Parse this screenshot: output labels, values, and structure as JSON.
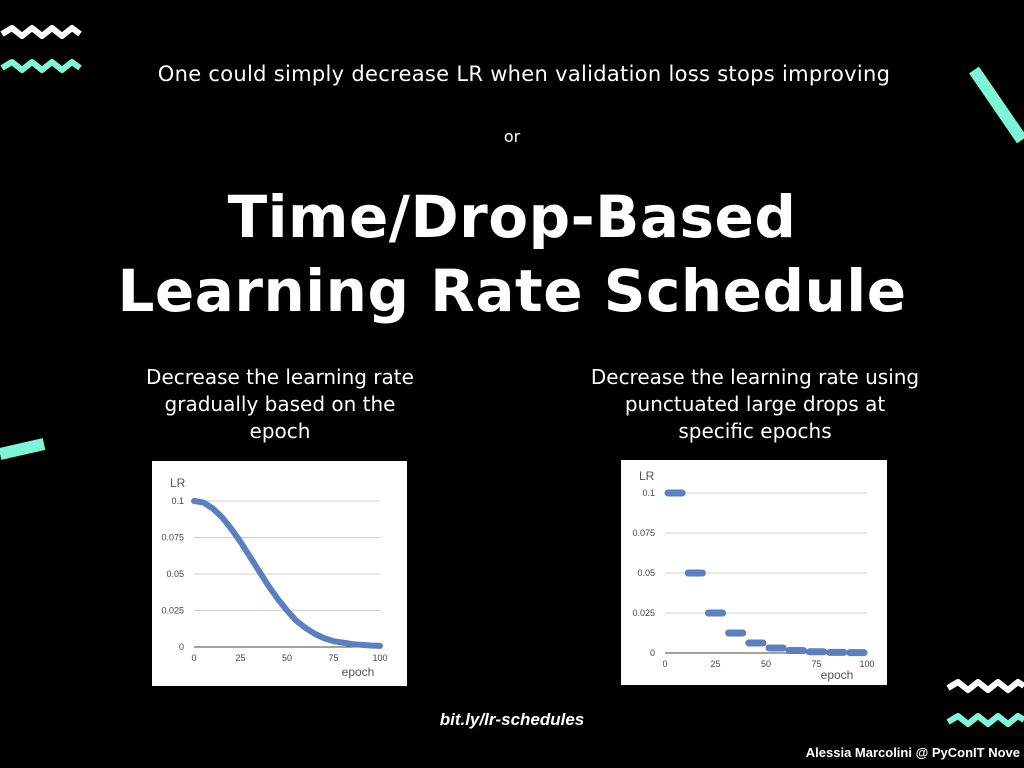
{
  "slide": {
    "subtitle": "One could simply decrease LR when validation loss stops improving",
    "or_text": "or",
    "title_line1": "Time/Drop-Based",
    "title_line2": "Learning Rate Schedule",
    "left_description": "Decrease the learning rate gradually based on the epoch",
    "right_description": "Decrease the learning rate using punctuated large drops at specific epochs",
    "link": "bit.ly/lr-schedules",
    "footer": "Alessia Marcolini @ PyConIT Nove"
  },
  "colors": {
    "background": "#000000",
    "accent": "#7ef5d6",
    "text": "#ffffff",
    "line": "#5b7fbf"
  },
  "chart_data": [
    {
      "type": "line",
      "title": "",
      "xlabel": "epoch",
      "ylabel": "LR",
      "xlim": [
        0,
        100
      ],
      "ylim": [
        0,
        0.1
      ],
      "xticks": [
        "0",
        "25",
        "50",
        "75",
        "100"
      ],
      "yticks": [
        "0",
        "0.025",
        "0.05",
        "0.075",
        "0.1"
      ],
      "grid": true,
      "series": [
        {
          "x": [
            0,
            5,
            10,
            15,
            20,
            25,
            30,
            35,
            40,
            45,
            50,
            55,
            60,
            65,
            70,
            75,
            80,
            85,
            90,
            95,
            100
          ],
          "y": [
            0.1,
            0.099,
            0.095,
            0.089,
            0.081,
            0.072,
            0.062,
            0.052,
            0.042,
            0.033,
            0.025,
            0.018,
            0.013,
            0.009,
            0.006,
            0.004,
            0.003,
            0.002,
            0.0015,
            0.001,
            0.0008
          ]
        }
      ]
    },
    {
      "type": "line",
      "title": "",
      "xlabel": "epoch",
      "ylabel": "LR",
      "xlim": [
        0,
        100
      ],
      "ylim": [
        0,
        0.1
      ],
      "xticks": [
        "0",
        "25",
        "50",
        "75",
        "100"
      ],
      "yticks": [
        "0",
        "0.025",
        "0.05",
        "0.075",
        "0.1"
      ],
      "grid": true,
      "series": [
        {
          "segments": [
            {
              "x_start": 0,
              "x_end": 10,
              "y": 0.1
            },
            {
              "x_start": 10,
              "x_end": 20,
              "y": 0.05
            },
            {
              "x_start": 20,
              "x_end": 30,
              "y": 0.025
            },
            {
              "x_start": 30,
              "x_end": 40,
              "y": 0.0125
            },
            {
              "x_start": 40,
              "x_end": 50,
              "y": 0.00625
            },
            {
              "x_start": 50,
              "x_end": 60,
              "y": 0.003125
            },
            {
              "x_start": 60,
              "x_end": 70,
              "y": 0.0015625
            },
            {
              "x_start": 70,
              "x_end": 80,
              "y": 0.00078
            },
            {
              "x_start": 80,
              "x_end": 90,
              "y": 0.00039
            },
            {
              "x_start": 90,
              "x_end": 100,
              "y": 0.0002
            }
          ]
        }
      ]
    }
  ]
}
